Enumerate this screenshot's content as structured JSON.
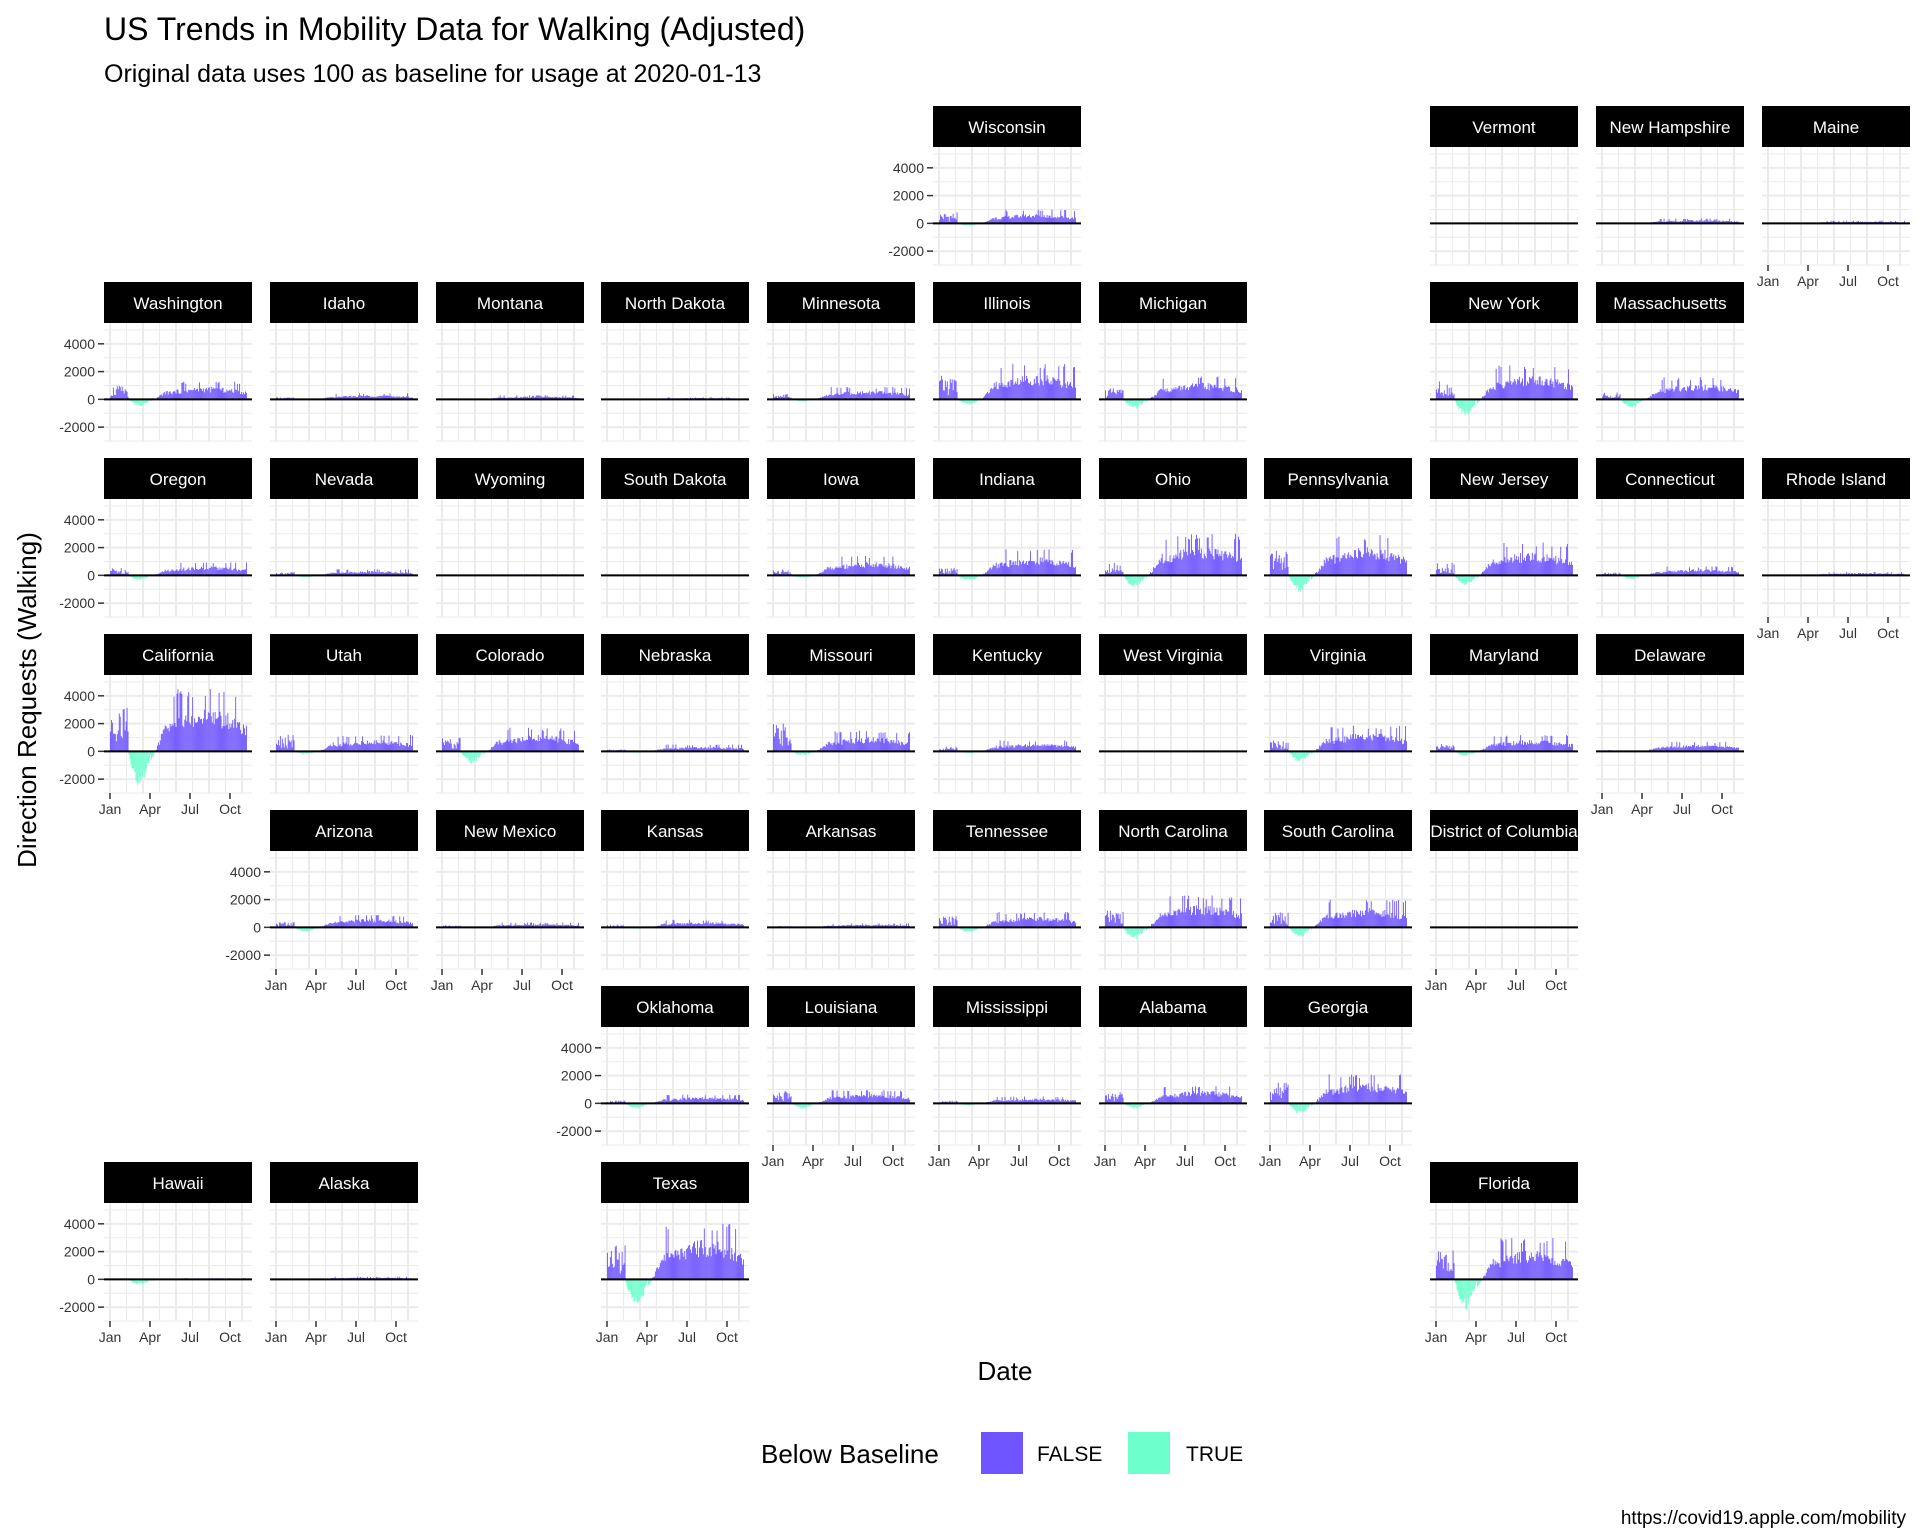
{
  "chart_data": {
    "type": "bar",
    "title": "US Trends in Mobility Data for Walking (Adjusted)",
    "subtitle": "Original data uses 100 as baseline for usage at 2020-01-13",
    "xlabel": "Date",
    "ylabel": "Direction Requests (Walking)",
    "caption": "https://covid19.apple.com/mobility",
    "ylim": [
      -3000,
      5500
    ],
    "y_ticks": [
      -2000,
      0,
      2000,
      4000
    ],
    "y_tick_labels": [
      "-2000",
      "0",
      "2000",
      "4000"
    ],
    "x_ticks": [
      "Jan",
      "Apr",
      "Jul",
      "Oct"
    ],
    "grid": true,
    "legend": {
      "title": "Below Baseline",
      "placement": "bottom",
      "entries": [
        {
          "label": "FALSE",
          "color": "#6e55ff"
        },
        {
          "label": "TRUE",
          "color": "#6dffcc"
        }
      ]
    },
    "colors": {
      "false": "#6e55ff",
      "true": "#6dffcc",
      "strip_bg": "#000000",
      "grid": "#ebebeb",
      "zero_line": "#000000"
    },
    "facet_layout": "US state tile grid (geofacet), facet rows 1-8, columns 1-11",
    "panels": [
      {
        "name": "Wisconsin",
        "row": 1,
        "col": 6,
        "pre_peak": 800,
        "dip": -200,
        "peak": 1000
      },
      {
        "name": "Vermont",
        "row": 1,
        "col": 9,
        "pre_peak": 40,
        "dip": -20,
        "peak": 60
      },
      {
        "name": "New Hampshire",
        "row": 1,
        "col": 10,
        "pre_peak": 60,
        "dip": -30,
        "peak": 350
      },
      {
        "name": "Maine",
        "row": 1,
        "col": 11,
        "pre_peak": 60,
        "dip": -30,
        "peak": 200
      },
      {
        "name": "Washington",
        "row": 2,
        "col": 1,
        "pre_peak": 1000,
        "dip": -500,
        "peak": 1300
      },
      {
        "name": "Idaho",
        "row": 2,
        "col": 2,
        "pre_peak": 150,
        "dip": -60,
        "peak": 450
      },
      {
        "name": "Montana",
        "row": 2,
        "col": 3,
        "pre_peak": 80,
        "dip": -40,
        "peak": 300
      },
      {
        "name": "North Dakota",
        "row": 2,
        "col": 4,
        "pre_peak": 40,
        "dip": -20,
        "peak": 150
      },
      {
        "name": "Minnesota",
        "row": 2,
        "col": 5,
        "pre_peak": 400,
        "dip": -150,
        "peak": 900
      },
      {
        "name": "Illinois",
        "row": 2,
        "col": 6,
        "pre_peak": 1700,
        "dip": -400,
        "peak": 2600
      },
      {
        "name": "Michigan",
        "row": 2,
        "col": 7,
        "pre_peak": 800,
        "dip": -700,
        "peak": 1700
      },
      {
        "name": "New York",
        "row": 2,
        "col": 9,
        "pre_peak": 1300,
        "dip": -1200,
        "peak": 2500
      },
      {
        "name": "Massachusetts",
        "row": 2,
        "col": 10,
        "pre_peak": 500,
        "dip": -600,
        "peak": 1600
      },
      {
        "name": "Oregon",
        "row": 3,
        "col": 1,
        "pre_peak": 550,
        "dip": -350,
        "peak": 950
      },
      {
        "name": "Nevada",
        "row": 3,
        "col": 2,
        "pre_peak": 250,
        "dip": -150,
        "peak": 450
      },
      {
        "name": "Wyoming",
        "row": 3,
        "col": 3,
        "pre_peak": 40,
        "dip": -20,
        "peak": 80
      },
      {
        "name": "South Dakota",
        "row": 3,
        "col": 4,
        "pre_peak": 40,
        "dip": -20,
        "peak": 60
      },
      {
        "name": "Iowa",
        "row": 3,
        "col": 5,
        "pre_peak": 450,
        "dip": -200,
        "peak": 1400
      },
      {
        "name": "Indiana",
        "row": 3,
        "col": 6,
        "pre_peak": 550,
        "dip": -400,
        "peak": 1900
      },
      {
        "name": "Ohio",
        "row": 3,
        "col": 7,
        "pre_peak": 1000,
        "dip": -900,
        "peak": 3000
      },
      {
        "name": "Pennsylvania",
        "row": 3,
        "col": 8,
        "pre_peak": 1900,
        "dip": -1200,
        "peak": 2900
      },
      {
        "name": "New Jersey",
        "row": 3,
        "col": 9,
        "pre_peak": 950,
        "dip": -750,
        "peak": 2400
      },
      {
        "name": "Connecticut",
        "row": 3,
        "col": 10,
        "pre_peak": 200,
        "dip": -300,
        "peak": 650
      },
      {
        "name": "Rhode Island",
        "row": 3,
        "col": 11,
        "pre_peak": 60,
        "dip": -40,
        "peak": 250
      },
      {
        "name": "California",
        "row": 4,
        "col": 1,
        "pre_peak": 3500,
        "dip": -2600,
        "peak": 4500
      },
      {
        "name": "Utah",
        "row": 4,
        "col": 2,
        "pre_peak": 1200,
        "dip": -200,
        "peak": 1200
      },
      {
        "name": "Colorado",
        "row": 4,
        "col": 3,
        "pre_peak": 1000,
        "dip": -900,
        "peak": 1700
      },
      {
        "name": "Nebraska",
        "row": 4,
        "col": 4,
        "pre_peak": 150,
        "dip": -100,
        "peak": 500
      },
      {
        "name": "Missouri",
        "row": 4,
        "col": 5,
        "pre_peak": 2000,
        "dip": -300,
        "peak": 1500
      },
      {
        "name": "Kentucky",
        "row": 4,
        "col": 6,
        "pre_peak": 350,
        "dip": -150,
        "peak": 800
      },
      {
        "name": "West Virginia",
        "row": 4,
        "col": 7,
        "pre_peak": 30,
        "dip": -20,
        "peak": 60
      },
      {
        "name": "Virginia",
        "row": 4,
        "col": 8,
        "pre_peak": 800,
        "dip": -800,
        "peak": 1900
      },
      {
        "name": "Maryland",
        "row": 4,
        "col": 9,
        "pre_peak": 550,
        "dip": -350,
        "peak": 1200
      },
      {
        "name": "Delaware",
        "row": 4,
        "col": 10,
        "pre_peak": 100,
        "dip": -60,
        "peak": 700
      },
      {
        "name": "Arizona",
        "row": 5,
        "col": 2,
        "pre_peak": 400,
        "dip": -350,
        "peak": 900
      },
      {
        "name": "New Mexico",
        "row": 5,
        "col": 3,
        "pre_peak": 150,
        "dip": -80,
        "peak": 350
      },
      {
        "name": "Kansas",
        "row": 5,
        "col": 4,
        "pre_peak": 200,
        "dip": -100,
        "peak": 550
      },
      {
        "name": "Arkansas",
        "row": 5,
        "col": 5,
        "pre_peak": 100,
        "dip": -80,
        "peak": 300
      },
      {
        "name": "Tennessee",
        "row": 5,
        "col": 6,
        "pre_peak": 800,
        "dip": -400,
        "peak": 1100
      },
      {
        "name": "North Carolina",
        "row": 5,
        "col": 7,
        "pre_peak": 1200,
        "dip": -900,
        "peak": 2300
      },
      {
        "name": "South Carolina",
        "row": 5,
        "col": 8,
        "pre_peak": 1100,
        "dip": -700,
        "peak": 2000
      },
      {
        "name": "District of Columbia",
        "row": 5,
        "col": 9,
        "pre_peak": 30,
        "dip": -20,
        "peak": 50
      },
      {
        "name": "Oklahoma",
        "row": 6,
        "col": 4,
        "pre_peak": 200,
        "dip": -400,
        "peak": 650
      },
      {
        "name": "Louisiana",
        "row": 6,
        "col": 5,
        "pre_peak": 900,
        "dip": -400,
        "peak": 950
      },
      {
        "name": "Mississippi",
        "row": 6,
        "col": 6,
        "pre_peak": 200,
        "dip": -150,
        "peak": 500
      },
      {
        "name": "Alabama",
        "row": 6,
        "col": 7,
        "pre_peak": 800,
        "dip": -400,
        "peak": 1300
      },
      {
        "name": "Georgia",
        "row": 6,
        "col": 8,
        "pre_peak": 1500,
        "dip": -800,
        "peak": 2100
      },
      {
        "name": "Hawaii",
        "row": 7,
        "col": 1,
        "pre_peak": 80,
        "dip": -400,
        "peak": 100
      },
      {
        "name": "Alaska",
        "row": 7,
        "col": 2,
        "pre_peak": 60,
        "dip": -40,
        "peak": 200
      },
      {
        "name": "Texas",
        "row": 7,
        "col": 4,
        "pre_peak": 2500,
        "dip": -2000,
        "peak": 4100
      },
      {
        "name": "Florida",
        "row": 7,
        "col": 9,
        "pre_peak": 2200,
        "dip": -2300,
        "peak": 3000
      }
    ]
  }
}
